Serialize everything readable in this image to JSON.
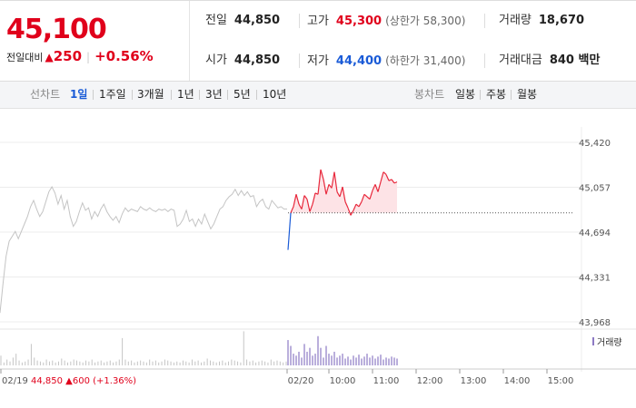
{
  "price": {
    "current": "45,100",
    "change_label": "전일대비",
    "change_arrow": "▲",
    "change_value": "250",
    "change_rate": "+0.56%"
  },
  "stats": {
    "prev_close_label": "전일",
    "prev_close": "44,850",
    "open_label": "시가",
    "open": "44,850",
    "high_label": "고가",
    "high": "45,300",
    "upper_limit_label": "(상한가 58,300)",
    "low_label": "저가",
    "low": "44,400",
    "lower_limit_label": "(하한가 31,400)",
    "volume_label": "거래량",
    "volume": "18,670",
    "amount_label": "거래대금",
    "amount": "840 백만"
  },
  "toolbar": {
    "line_chart_label": "선차트",
    "line_periods": [
      "1일",
      "1주일",
      "3개월",
      "1년",
      "3년",
      "5년",
      "10년"
    ],
    "active_period": "1일",
    "candle_label": "봉차트",
    "candle_periods": [
      "일봉",
      "주봉",
      "월봉"
    ]
  },
  "chart_data": {
    "type": "line",
    "y_ticks": [
      "45,420",
      "45,057",
      "44,694",
      "44,331",
      "43,968"
    ],
    "ylim": [
      43968,
      45420
    ],
    "baseline": 44850,
    "x_tick_labels": [
      "02/19",
      "02/20",
      "10:00",
      "11:00",
      "12:00",
      "13:00",
      "14:00",
      "15:00"
    ],
    "prev_day_info": {
      "date": "02/19",
      "price": "44,850",
      "arrow": "▲",
      "change": "600",
      "rate": "(+1.36%)"
    },
    "volume_legend": "거래량",
    "colors": {
      "up": "#e8283c",
      "down": "#1a5bd7",
      "prev": "#c4c4c4",
      "volume": "#c4c4c4",
      "volume_today": "#8d7ac4",
      "fill": "#fde3e6"
    },
    "series": [
      {
        "values": [
          44040,
          44280,
          44500,
          44620,
          44660,
          44700,
          44640,
          44700,
          44760,
          44820,
          44900,
          44950,
          44880,
          44820,
          44860,
          44940,
          45020,
          45060,
          45010,
          44920,
          44990,
          44880,
          44950,
          44820,
          44740,
          44780,
          44860,
          44930,
          44870,
          44890,
          44800,
          44860,
          44820,
          44880,
          44920,
          44860,
          44820,
          44790,
          44820,
          44770,
          44840,
          44890,
          44860,
          44880,
          44870,
          44860,
          44900,
          44880,
          44870,
          44890,
          44870,
          44860,
          44880,
          44870,
          44880,
          44860,
          44880,
          44870,
          44740,
          44760,
          44800,
          44870,
          44780,
          44800,
          44740,
          44800,
          44760,
          44840,
          44780,
          44720,
          44760,
          44820,
          44880,
          44900,
          44950,
          44980,
          45000,
          45040,
          44990,
          45030,
          44990,
          45020,
          44980,
          44990,
          44900,
          44940,
          44960,
          44900,
          44880,
          44950,
          44920,
          44890,
          44900,
          44880,
          44880
        ]
      },
      {
        "values": [
          44550,
          44850,
          44900,
          45000,
          44920,
          44880,
          44990,
          44960,
          44860,
          44920,
          45010,
          45000,
          45200,
          45120,
          45000,
          45080,
          45050,
          45180,
          45020,
          44980,
          45060,
          44940,
          44890,
          44830,
          44870,
          44920,
          44900,
          44940,
          45000,
          44980,
          44960,
          45030,
          45080,
          45020,
          45100,
          45180,
          45160,
          45110,
          45120,
          45090,
          45100
        ]
      }
    ],
    "volume_prev": [
      10,
      3,
      6,
      4,
      8,
      12,
      5,
      3,
      4,
      6,
      22,
      8,
      5,
      4,
      3,
      6,
      4,
      5,
      3,
      4,
      7,
      5,
      3,
      4,
      6,
      5,
      4,
      3,
      5,
      4,
      6,
      3,
      4,
      5,
      3,
      4,
      5,
      3,
      4,
      6,
      28,
      6,
      4,
      5,
      3,
      4,
      5,
      4,
      3,
      6,
      4,
      5,
      3,
      4,
      6,
      5,
      4,
      3,
      4,
      3,
      5,
      4,
      3,
      6,
      4,
      5,
      3,
      4,
      7,
      5,
      4,
      3,
      4,
      5,
      3,
      4,
      6,
      5,
      4,
      3,
      35,
      6,
      4,
      5,
      3,
      4,
      5,
      4,
      3,
      6,
      4,
      5,
      4,
      3,
      4
    ],
    "volume_today": [
      26,
      20,
      12,
      10,
      14,
      8,
      22,
      14,
      18,
      10,
      12,
      30,
      18,
      8,
      20,
      12,
      10,
      14,
      8,
      10,
      12,
      7,
      9,
      6,
      10,
      8,
      11,
      7,
      9,
      12,
      8,
      10,
      7,
      9,
      11,
      6,
      8,
      7,
      9,
      8,
      7
    ]
  }
}
